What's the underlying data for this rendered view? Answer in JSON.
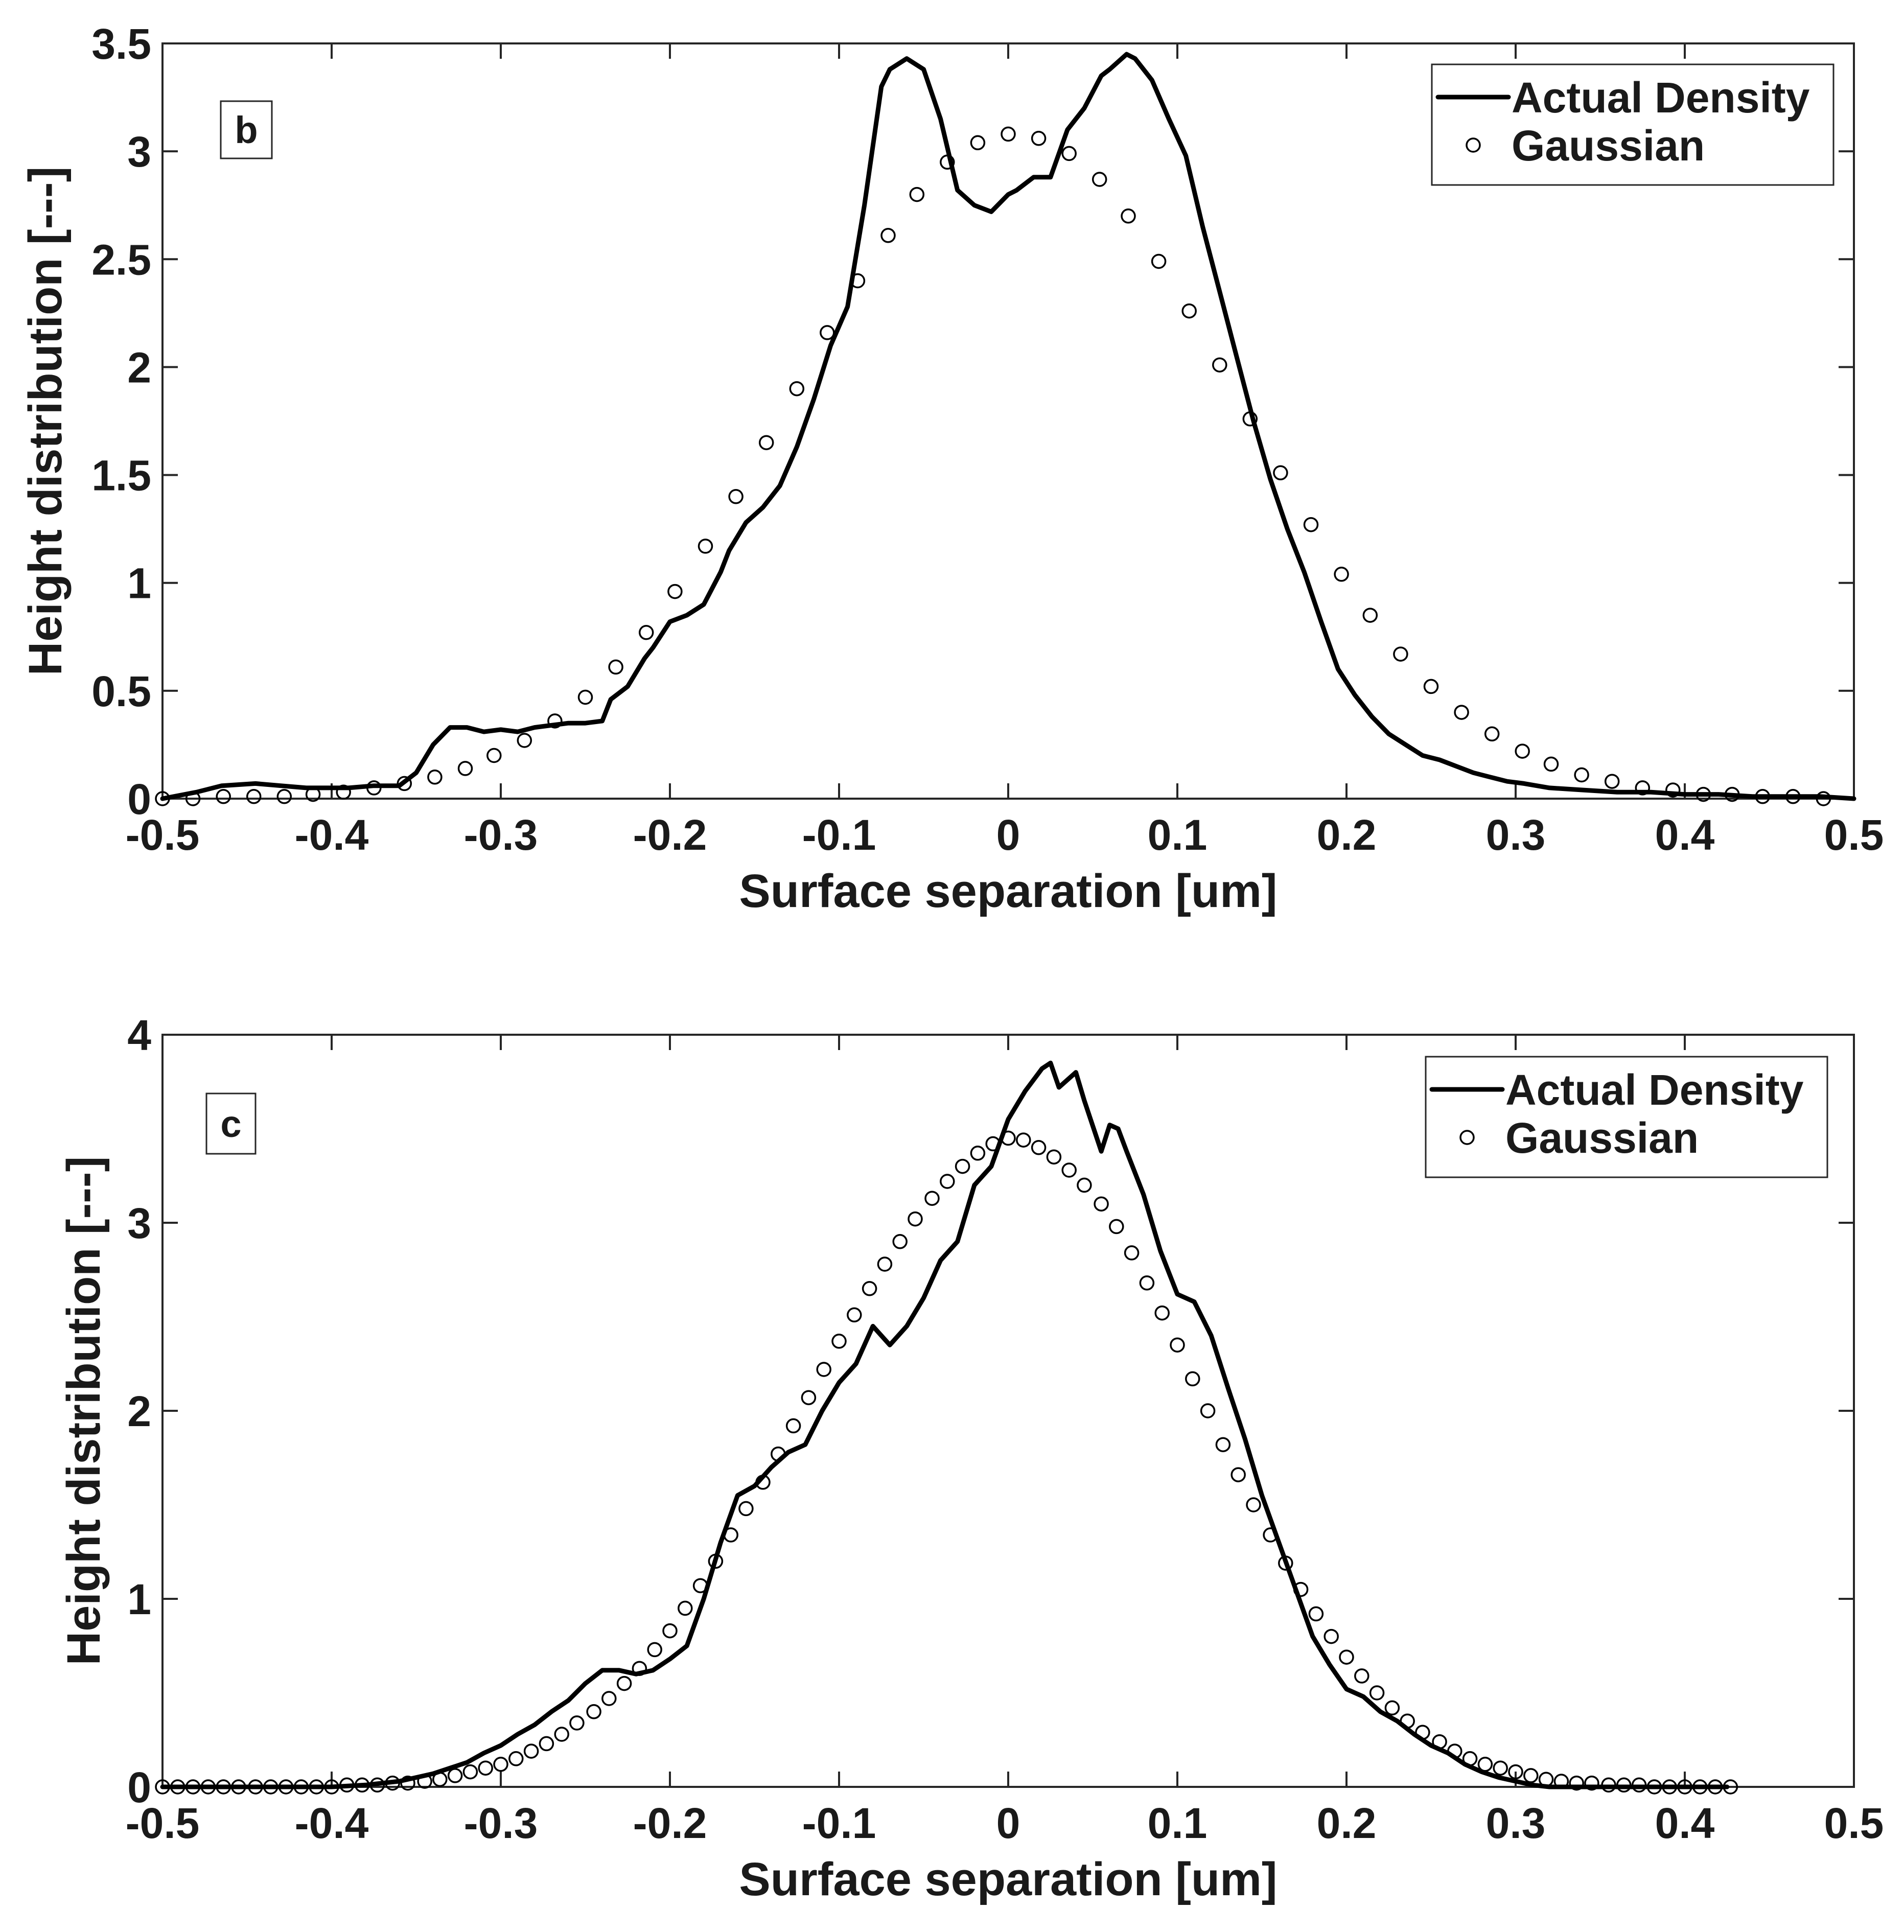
{
  "chart_data": [
    {
      "type": "line",
      "panel_label": "b",
      "xlabel": "Surface separation [um]",
      "ylabel": "Height distribution [---]",
      "xlim": [
        -0.5,
        0.5
      ],
      "ylim": [
        0,
        3.5
      ],
      "xticks": [
        -0.5,
        -0.4,
        -0.3,
        -0.2,
        -0.1,
        0,
        0.1,
        0.2,
        0.3,
        0.4,
        0.5
      ],
      "xtick_labels": [
        "-0.5",
        "-0.4",
        "-0.3",
        "-0.2",
        "-0.1",
        "0",
        "0.1",
        "0.2",
        "0.3",
        "0.4",
        "0.5"
      ],
      "yticks": [
        0,
        0.5,
        1,
        1.5,
        2,
        2.5,
        3,
        3.5
      ],
      "ytick_labels": [
        "0",
        "0.5",
        "1",
        "1.5",
        "2",
        "2.5",
        "3",
        "3.5"
      ],
      "legend": {
        "position": "top-right",
        "entries": [
          "Actual Density",
          "Gaussian"
        ]
      },
      "series": [
        {
          "name": "Actual Density",
          "style": "solid-line",
          "x": [
            -0.5,
            -0.48,
            -0.465,
            -0.445,
            -0.43,
            -0.415,
            -0.4,
            -0.39,
            -0.375,
            -0.36,
            -0.35,
            -0.34,
            -0.33,
            -0.32,
            -0.31,
            -0.3,
            -0.29,
            -0.28,
            -0.27,
            -0.26,
            -0.25,
            -0.24,
            -0.235,
            -0.225,
            -0.215,
            -0.21,
            -0.2,
            -0.19,
            -0.18,
            -0.17,
            -0.165,
            -0.155,
            -0.145,
            -0.135,
            -0.125,
            -0.115,
            -0.105,
            -0.095,
            -0.085,
            -0.075,
            -0.07,
            -0.06,
            -0.05,
            -0.04,
            -0.03,
            -0.02,
            -0.01,
            0,
            0.005,
            0.015,
            0.025,
            0.035,
            0.045,
            0.055,
            0.06,
            0.07,
            0.075,
            0.085,
            0.095,
            0.105,
            0.115,
            0.125,
            0.135,
            0.145,
            0.155,
            0.165,
            0.175,
            0.185,
            0.195,
            0.205,
            0.215,
            0.225,
            0.235,
            0.245,
            0.255,
            0.265,
            0.275,
            0.285,
            0.295,
            0.305,
            0.32,
            0.34,
            0.36,
            0.38,
            0.4,
            0.42,
            0.44,
            0.46,
            0.48,
            0.5
          ],
          "y": [
            0.0,
            0.03,
            0.06,
            0.07,
            0.06,
            0.05,
            0.05,
            0.05,
            0.06,
            0.06,
            0.12,
            0.25,
            0.33,
            0.33,
            0.31,
            0.32,
            0.31,
            0.33,
            0.34,
            0.35,
            0.35,
            0.36,
            0.46,
            0.52,
            0.65,
            0.7,
            0.82,
            0.85,
            0.9,
            1.05,
            1.15,
            1.28,
            1.35,
            1.45,
            1.63,
            1.85,
            2.1,
            2.28,
            2.75,
            3.3,
            3.38,
            3.43,
            3.38,
            3.15,
            2.82,
            2.75,
            2.72,
            2.8,
            2.82,
            2.88,
            2.88,
            3.1,
            3.2,
            3.35,
            3.38,
            3.45,
            3.43,
            3.33,
            3.15,
            2.98,
            2.65,
            2.35,
            2.05,
            1.75,
            1.48,
            1.25,
            1.05,
            0.82,
            0.6,
            0.48,
            0.38,
            0.3,
            0.25,
            0.2,
            0.18,
            0.15,
            0.12,
            0.1,
            0.08,
            0.07,
            0.05,
            0.04,
            0.03,
            0.03,
            0.02,
            0.02,
            0.01,
            0.01,
            0.01,
            0.0
          ]
        },
        {
          "name": "Gaussian",
          "style": "open-circle",
          "x": [
            -0.5,
            -0.482,
            -0.464,
            -0.446,
            -0.428,
            -0.411,
            -0.393,
            -0.375,
            -0.357,
            -0.339,
            -0.321,
            -0.304,
            -0.286,
            -0.268,
            -0.25,
            -0.232,
            -0.214,
            -0.197,
            -0.179,
            -0.161,
            -0.143,
            -0.125,
            -0.107,
            -0.089,
            -0.071,
            -0.054,
            -0.036,
            -0.018,
            0.0,
            0.018,
            0.036,
            0.054,
            0.071,
            0.089,
            0.107,
            0.125,
            0.143,
            0.161,
            0.179,
            0.197,
            0.214,
            0.232,
            0.25,
            0.268,
            0.286,
            0.304,
            0.321,
            0.339,
            0.357,
            0.375,
            0.393,
            0.411,
            0.428,
            0.446,
            0.464,
            0.482
          ],
          "y": [
            0.0,
            0.0,
            0.01,
            0.01,
            0.01,
            0.02,
            0.03,
            0.05,
            0.07,
            0.1,
            0.14,
            0.2,
            0.27,
            0.36,
            0.47,
            0.61,
            0.77,
            0.96,
            1.17,
            1.4,
            1.65,
            1.9,
            2.16,
            2.4,
            2.61,
            2.8,
            2.95,
            3.04,
            3.08,
            3.06,
            2.99,
            2.87,
            2.7,
            2.49,
            2.26,
            2.01,
            1.76,
            1.51,
            1.27,
            1.04,
            0.85,
            0.67,
            0.52,
            0.4,
            0.3,
            0.22,
            0.16,
            0.11,
            0.08,
            0.05,
            0.04,
            0.02,
            0.02,
            0.01,
            0.01,
            0.0
          ]
        }
      ]
    },
    {
      "type": "line",
      "panel_label": "c",
      "xlabel": "Surface separation [um]",
      "ylabel": "Height distribution [---]",
      "xlim": [
        -0.5,
        0.5
      ],
      "ylim": [
        0,
        4
      ],
      "xticks": [
        -0.5,
        -0.4,
        -0.3,
        -0.2,
        -0.1,
        0,
        0.1,
        0.2,
        0.3,
        0.4,
        0.5
      ],
      "xtick_labels": [
        "-0.5",
        "-0.4",
        "-0.3",
        "-0.2",
        "-0.1",
        "0",
        "0.1",
        "0.2",
        "0.3",
        "0.4",
        "0.5"
      ],
      "yticks": [
        0,
        1,
        2,
        3,
        4
      ],
      "ytick_labels": [
        "0",
        "1",
        "2",
        "3",
        "4"
      ],
      "legend": {
        "position": "top-right",
        "entries": [
          "Actual Density",
          "Gaussian"
        ]
      },
      "series": [
        {
          "name": "Actual Density",
          "style": "solid-line",
          "x": [
            -0.5,
            -0.45,
            -0.4,
            -0.38,
            -0.36,
            -0.35,
            -0.34,
            -0.33,
            -0.32,
            -0.31,
            -0.3,
            -0.29,
            -0.28,
            -0.27,
            -0.26,
            -0.25,
            -0.24,
            -0.23,
            -0.22,
            -0.21,
            -0.2,
            -0.19,
            -0.18,
            -0.17,
            -0.16,
            -0.15,
            -0.14,
            -0.13,
            -0.12,
            -0.11,
            -0.1,
            -0.09,
            -0.08,
            -0.07,
            -0.06,
            -0.05,
            -0.04,
            -0.03,
            -0.02,
            -0.01,
            0,
            0.01,
            0.02,
            0.025,
            0.03,
            0.04,
            0.045,
            0.055,
            0.06,
            0.065,
            0.07,
            0.08,
            0.09,
            0.1,
            0.11,
            0.12,
            0.13,
            0.14,
            0.15,
            0.16,
            0.17,
            0.18,
            0.19,
            0.2,
            0.21,
            0.22,
            0.23,
            0.24,
            0.25,
            0.26,
            0.27,
            0.28,
            0.29,
            0.3,
            0.31,
            0.32,
            0.35,
            0.38,
            0.4,
            0.425
          ],
          "y": [
            0.0,
            0.0,
            0.0,
            0.01,
            0.03,
            0.05,
            0.07,
            0.1,
            0.13,
            0.18,
            0.22,
            0.28,
            0.33,
            0.4,
            0.46,
            0.55,
            0.62,
            0.62,
            0.6,
            0.62,
            0.68,
            0.75,
            1.0,
            1.3,
            1.55,
            1.6,
            1.7,
            1.78,
            1.82,
            2.0,
            2.15,
            2.25,
            2.45,
            2.35,
            2.45,
            2.6,
            2.8,
            2.9,
            3.2,
            3.3,
            3.55,
            3.7,
            3.82,
            3.85,
            3.72,
            3.8,
            3.65,
            3.38,
            3.52,
            3.5,
            3.38,
            3.15,
            2.85,
            2.62,
            2.58,
            2.4,
            2.12,
            1.85,
            1.55,
            1.3,
            1.05,
            0.8,
            0.65,
            0.52,
            0.48,
            0.4,
            0.35,
            0.28,
            0.22,
            0.18,
            0.12,
            0.08,
            0.05,
            0.03,
            0.01,
            0.0,
            0.0,
            0.0,
            0.0,
            0.0
          ]
        },
        {
          "name": "Gaussian",
          "style": "open-circle",
          "x": [
            -0.5,
            -0.491,
            -0.482,
            -0.473,
            -0.464,
            -0.455,
            -0.445,
            -0.436,
            -0.427,
            -0.418,
            -0.409,
            -0.4,
            -0.391,
            -0.382,
            -0.373,
            -0.364,
            -0.355,
            -0.345,
            -0.336,
            -0.327,
            -0.318,
            -0.309,
            -0.3,
            -0.291,
            -0.282,
            -0.273,
            -0.264,
            -0.255,
            -0.245,
            -0.236,
            -0.227,
            -0.218,
            -0.209,
            -0.2,
            -0.191,
            -0.182,
            -0.173,
            -0.164,
            -0.155,
            -0.145,
            -0.136,
            -0.127,
            -0.118,
            -0.109,
            -0.1,
            -0.091,
            -0.082,
            -0.073,
            -0.064,
            -0.055,
            -0.045,
            -0.036,
            -0.027,
            -0.018,
            -0.009,
            0.0,
            0.009,
            0.018,
            0.027,
            0.036,
            0.045,
            0.055,
            0.064,
            0.073,
            0.082,
            0.091,
            0.1,
            0.109,
            0.118,
            0.127,
            0.136,
            0.145,
            0.155,
            0.164,
            0.173,
            0.182,
            0.191,
            0.2,
            0.209,
            0.218,
            0.227,
            0.236,
            0.245,
            0.255,
            0.264,
            0.273,
            0.282,
            0.291,
            0.3,
            0.309,
            0.318,
            0.327,
            0.336,
            0.345,
            0.355,
            0.364,
            0.373,
            0.382,
            0.391,
            0.4,
            0.409,
            0.418,
            0.427
          ],
          "y": [
            0.0,
            0.0,
            0.0,
            0.0,
            0.0,
            0.0,
            0.0,
            0.0,
            0.0,
            0.0,
            0.0,
            0.0,
            0.01,
            0.01,
            0.01,
            0.02,
            0.02,
            0.03,
            0.04,
            0.06,
            0.08,
            0.1,
            0.12,
            0.15,
            0.19,
            0.23,
            0.28,
            0.34,
            0.4,
            0.47,
            0.55,
            0.63,
            0.73,
            0.83,
            0.95,
            1.07,
            1.2,
            1.34,
            1.48,
            1.62,
            1.77,
            1.92,
            2.07,
            2.22,
            2.37,
            2.51,
            2.65,
            2.78,
            2.9,
            3.02,
            3.13,
            3.22,
            3.3,
            3.37,
            3.42,
            3.45,
            3.44,
            3.4,
            3.35,
            3.28,
            3.2,
            3.1,
            2.98,
            2.84,
            2.68,
            2.52,
            2.35,
            2.17,
            2.0,
            1.82,
            1.66,
            1.5,
            1.34,
            1.19,
            1.05,
            0.92,
            0.8,
            0.69,
            0.59,
            0.5,
            0.42,
            0.35,
            0.29,
            0.24,
            0.19,
            0.15,
            0.12,
            0.1,
            0.08,
            0.06,
            0.04,
            0.03,
            0.02,
            0.02,
            0.01,
            0.01,
            0.01,
            0.0,
            0.0,
            0.0,
            0.0,
            0.0,
            0.0
          ]
        }
      ]
    }
  ]
}
